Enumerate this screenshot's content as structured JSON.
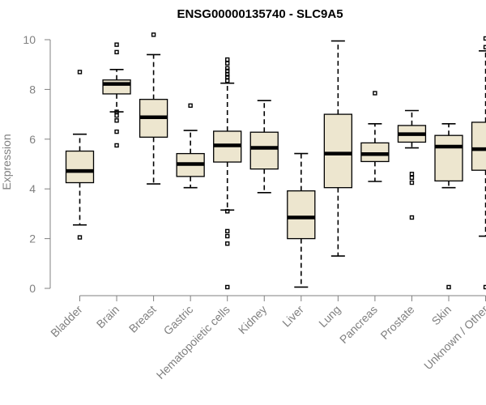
{
  "chart_data": {
    "type": "boxplot",
    "title": "ENSG00000135740 - SLC9A5",
    "ylabel": "Expression",
    "xlabel": "",
    "ylim": [
      0,
      10
    ],
    "yticks": [
      0,
      2,
      4,
      6,
      8,
      10
    ],
    "grid": false,
    "box_color": "#EDE6CF",
    "categories": [
      "Bladder",
      "Brain",
      "Breast",
      "Gastric",
      "Hematopoietic cells",
      "Kidney",
      "Liver",
      "Lung",
      "Pancreas",
      "Prostate",
      "Skin",
      "Unknown / Other"
    ],
    "boxes": [
      {
        "category": "Bladder",
        "whisker_low": 2.55,
        "q1": 4.25,
        "median": 4.72,
        "q3": 5.52,
        "whisker_high": 6.2,
        "outliers": [
          8.7,
          2.05
        ]
      },
      {
        "category": "Brain",
        "whisker_low": 7.1,
        "q1": 7.82,
        "median": 8.22,
        "q3": 8.38,
        "whisker_high": 8.8,
        "outliers": [
          9.8,
          9.5,
          7.1,
          6.95,
          6.75,
          6.3,
          5.75
        ]
      },
      {
        "category": "Breast",
        "whisker_low": 4.2,
        "q1": 6.08,
        "median": 6.88,
        "q3": 7.6,
        "whisker_high": 9.4,
        "outliers": [
          10.2
        ]
      },
      {
        "category": "Gastric",
        "whisker_low": 4.05,
        "q1": 4.5,
        "median": 5.0,
        "q3": 5.42,
        "whisker_high": 6.35,
        "outliers": [
          7.35
        ]
      },
      {
        "category": "Hematopoietic cells",
        "whisker_low": 3.15,
        "q1": 5.08,
        "median": 5.75,
        "q3": 6.32,
        "whisker_high": 8.25,
        "outliers": [
          9.2,
          9.05,
          8.85,
          8.75,
          8.6,
          8.5,
          8.35,
          3.1,
          2.3,
          2.1,
          1.8,
          0.05
        ]
      },
      {
        "category": "Kidney",
        "whisker_low": 3.85,
        "q1": 4.8,
        "median": 5.65,
        "q3": 6.28,
        "whisker_high": 7.55,
        "outliers": []
      },
      {
        "category": "Liver",
        "whisker_low": 0.05,
        "q1": 2.0,
        "median": 2.85,
        "q3": 3.92,
        "whisker_high": 5.42,
        "outliers": []
      },
      {
        "category": "Lung",
        "whisker_low": 1.3,
        "q1": 4.05,
        "median": 5.42,
        "q3": 7.0,
        "whisker_high": 9.95,
        "outliers": []
      },
      {
        "category": "Pancreas",
        "whisker_low": 4.3,
        "q1": 5.1,
        "median": 5.4,
        "q3": 5.85,
        "whisker_high": 6.62,
        "outliers": [
          7.85
        ]
      },
      {
        "category": "Prostate",
        "whisker_low": 5.65,
        "q1": 5.88,
        "median": 6.2,
        "q3": 6.55,
        "whisker_high": 7.15,
        "outliers": [
          4.6,
          4.45,
          4.25,
          2.85
        ]
      },
      {
        "category": "Skin",
        "whisker_low": 4.05,
        "q1": 4.32,
        "median": 5.7,
        "q3": 6.15,
        "whisker_high": 6.62,
        "outliers": [
          0.05
        ]
      },
      {
        "category": "Unknown / Other",
        "whisker_low": 2.1,
        "q1": 4.75,
        "median": 5.6,
        "q3": 6.68,
        "whisker_high": 9.55,
        "outliers": [
          10.05,
          9.7,
          0.05
        ]
      }
    ]
  }
}
